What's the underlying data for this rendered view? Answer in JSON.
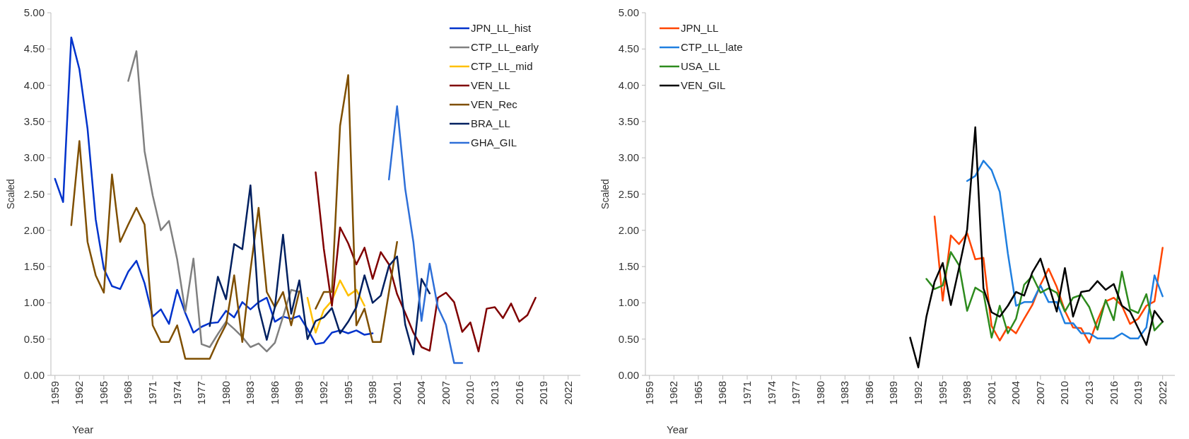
{
  "chart_data": [
    {
      "type": "line",
      "xlabel": "Year",
      "ylabel": "Scaled",
      "xlim": [
        1958.5,
        2023.5
      ],
      "ylim": [
        0,
        5
      ],
      "xticks": [
        1959,
        1962,
        1965,
        1968,
        1971,
        1974,
        1977,
        1980,
        1983,
        1986,
        1989,
        1992,
        1995,
        1998,
        2001,
        2004,
        2007,
        2010,
        2013,
        2016,
        2019,
        2022
      ],
      "yticks": [
        {
          "value": 0,
          "label": "0.00"
        },
        {
          "value": 0.5,
          "label": "0.50"
        },
        {
          "value": 1,
          "label": "1.00"
        },
        {
          "value": 1.5,
          "label": "1.50"
        },
        {
          "value": 2,
          "label": "2.00"
        },
        {
          "value": 2.5,
          "label": "2.50"
        },
        {
          "value": 3,
          "label": "3.00"
        },
        {
          "value": 3.5,
          "label": "3.50"
        },
        {
          "value": 4,
          "label": "4.00"
        },
        {
          "value": 4.5,
          "label": "4.50"
        },
        {
          "value": 5,
          "label": "5.00"
        }
      ],
      "grid": false,
      "legend": "top right",
      "marker": "none",
      "line_style": "solid",
      "series": [
        {
          "name": "JPN_LL_hist",
          "color": "#0033cc",
          "x": [
            1959,
            1960,
            1961,
            1962,
            1963,
            1964,
            1965,
            1966,
            1967,
            1968,
            1969,
            1970,
            1971,
            1972,
            1973,
            1974,
            1975,
            1976,
            1977,
            1978,
            1979,
            1980,
            1981,
            1982,
            1983,
            1984,
            1985,
            1986,
            1987,
            1988,
            1989,
            1990,
            1991,
            1992,
            1993,
            1994,
            1995,
            1996,
            1997,
            1998
          ],
          "values": [
            2.71,
            2.39,
            4.66,
            4.22,
            3.4,
            2.15,
            1.47,
            1.23,
            1.19,
            1.43,
            1.58,
            1.27,
            0.81,
            0.91,
            0.71,
            1.18,
            0.86,
            0.59,
            0.67,
            0.72,
            0.73,
            0.89,
            0.8,
            1.01,
            0.91,
            1.01,
            1.07,
            0.74,
            0.81,
            0.78,
            0.82,
            0.64,
            0.43,
            0.45,
            0.59,
            0.62,
            0.58,
            0.62,
            0.56,
            0.58
          ]
        },
        {
          "name": "CTP_LL_early",
          "color": "#808080",
          "x": [
            1968,
            1969,
            1970,
            1971,
            1972,
            1973,
            1974,
            1975,
            1976,
            1977,
            1978,
            1979,
            1980,
            1981,
            1982,
            1983,
            1984,
            1985,
            1986,
            1987,
            1988,
            1989
          ],
          "values": [
            4.06,
            4.47,
            3.09,
            2.48,
            2.0,
            2.13,
            1.6,
            0.88,
            1.61,
            0.43,
            0.39,
            0.57,
            0.74,
            0.64,
            0.53,
            0.39,
            0.44,
            0.33,
            0.45,
            0.81,
            1.18,
            1.15
          ]
        },
        {
          "name": "CTP_LL_mid",
          "color": "#ffc000",
          "x": [
            1990,
            1991,
            1992,
            1993,
            1994,
            1995,
            1996,
            1997
          ],
          "values": [
            1.07,
            0.59,
            0.9,
            1.03,
            1.31,
            1.1,
            1.18,
            0.96
          ]
        },
        {
          "name": "VEN_LL",
          "color": "#800000",
          "x": [
            1991,
            1992,
            1993,
            1994,
            1995,
            1996,
            1997,
            1998,
            1999,
            2000,
            2001,
            2002,
            2003,
            2004,
            2005,
            2006,
            2007,
            2008,
            2009,
            2010,
            2011,
            2012,
            2013,
            2014,
            2015,
            2016,
            2017,
            2018
          ],
          "values": [
            2.8,
            1.75,
            0.96,
            2.04,
            1.82,
            1.53,
            1.76,
            1.33,
            1.7,
            1.53,
            1.12,
            0.86,
            0.59,
            0.39,
            0.34,
            1.07,
            1.14,
            1.01,
            0.6,
            0.73,
            0.33,
            0.92,
            0.94,
            0.79,
            0.99,
            0.74,
            0.83,
            1.07
          ]
        },
        {
          "name": "VEN_Rec",
          "color": "#7f4f00",
          "x": [
            1961,
            1962,
            1963,
            1964,
            1965,
            1966,
            1967,
            1968,
            1969,
            1970,
            1971,
            1972,
            1973,
            1974,
            1975,
            1976,
            1977,
            1978,
            1979,
            1980,
            1981,
            1982,
            1983,
            1984,
            1985,
            1986,
            1987,
            1988,
            1989,
            1990,
            1991,
            1992,
            1993,
            1994,
            1995,
            1996,
            1997,
            1998,
            1999,
            2000,
            2001
          ],
          "values": [
            2.07,
            3.23,
            1.84,
            1.38,
            1.14,
            2.77,
            1.84,
            2.08,
            2.31,
            2.08,
            0.69,
            0.46,
            0.46,
            0.69,
            0.23,
            0.23,
            0.23,
            0.23,
            0.48,
            0.7,
            1.38,
            0.46,
            1.45,
            2.31,
            1.15,
            0.94,
            1.15,
            0.69,
            1.16,
            null,
            0.92,
            1.15,
            1.15,
            3.44,
            4.14,
            0.69,
            0.92,
            0.46,
            0.46,
            1.15,
            1.84
          ]
        },
        {
          "name": "BRA_LL",
          "color": "#002060",
          "x": [
            1978,
            1979,
            1980,
            1981,
            1982,
            1983,
            1984,
            1985,
            1986,
            1987,
            1988,
            1989,
            1990,
            1991,
            1992,
            1993,
            1994,
            1995,
            1996,
            1997,
            1998,
            1999,
            2000,
            2001,
            2002,
            2003,
            2004,
            2005
          ],
          "values": [
            0.68,
            1.36,
            1.05,
            1.81,
            1.74,
            2.62,
            0.94,
            0.49,
            0.94,
            1.94,
            0.85,
            1.31,
            0.5,
            0.75,
            0.8,
            0.93,
            0.58,
            0.74,
            0.94,
            1.38,
            1.0,
            1.1,
            1.51,
            1.64,
            0.7,
            0.29,
            1.33,
            1.13
          ]
        },
        {
          "name": "GHA_GIL",
          "color": "#2e6fd8",
          "x": [
            2000,
            2001,
            2002,
            2003,
            2004,
            2005,
            2006,
            2007,
            2008,
            2009
          ],
          "values": [
            2.7,
            3.71,
            2.57,
            1.84,
            0.75,
            1.54,
            0.94,
            0.7,
            0.17,
            0.17
          ]
        }
      ]
    },
    {
      "type": "line",
      "xlabel": "Year",
      "ylabel": "Scaled",
      "xlim": [
        1958.5,
        2023.5
      ],
      "ylim": [
        0,
        5
      ],
      "xticks": [
        1959,
        1962,
        1965,
        1968,
        1971,
        1974,
        1977,
        1980,
        1983,
        1986,
        1989,
        1992,
        1995,
        1998,
        2001,
        2004,
        2007,
        2010,
        2013,
        2016,
        2019,
        2022
      ],
      "yticks": [
        {
          "value": 0,
          "label": "0.00"
        },
        {
          "value": 0.5,
          "label": "0.50"
        },
        {
          "value": 1,
          "label": "1.00"
        },
        {
          "value": 1.5,
          "label": "1.50"
        },
        {
          "value": 2,
          "label": "2.00"
        },
        {
          "value": 2.5,
          "label": "2.50"
        },
        {
          "value": 3,
          "label": "3.00"
        },
        {
          "value": 3.5,
          "label": "3.50"
        },
        {
          "value": 4,
          "label": "4.00"
        },
        {
          "value": 4.5,
          "label": "4.50"
        },
        {
          "value": 5,
          "label": "5.00"
        }
      ],
      "grid": false,
      "legend": "top left",
      "marker": "none",
      "line_style": "solid",
      "series": [
        {
          "name": "JPN_LL",
          "color": "#ff4500",
          "x": [
            1994,
            1995,
            1996,
            1997,
            1998,
            1999,
            2000,
            2001,
            2002,
            2003,
            2004,
            2005,
            2006,
            2007,
            2008,
            2009,
            2010,
            2011,
            2012,
            2013,
            2014,
            2015,
            2016,
            2017,
            2018,
            2019,
            2020,
            2021,
            2022
          ],
          "values": [
            2.19,
            1.03,
            1.93,
            1.81,
            1.96,
            1.6,
            1.62,
            0.68,
            0.48,
            0.67,
            0.58,
            0.78,
            0.97,
            1.25,
            1.47,
            1.22,
            0.89,
            0.66,
            0.65,
            0.45,
            0.76,
            1.02,
            1.07,
            0.96,
            0.71,
            0.78,
            0.96,
            1.02,
            1.76
          ]
        },
        {
          "name": "CTP_LL_late",
          "color": "#1f7fe0",
          "x": [
            1998,
            1999,
            2000,
            2001,
            2002,
            2003,
            2004,
            2005,
            2006,
            2007,
            2008,
            2009,
            2010,
            2011,
            2012,
            2013,
            2014,
            2015,
            2016,
            2017,
            2018,
            2019,
            2020,
            2021,
            2022
          ],
          "values": [
            2.68,
            2.75,
            2.96,
            2.83,
            2.53,
            1.68,
            0.96,
            1.01,
            1.01,
            1.24,
            1.01,
            1.01,
            0.72,
            0.72,
            0.58,
            0.58,
            0.51,
            0.51,
            0.51,
            0.58,
            0.51,
            0.51,
            0.66,
            1.38,
            1.09
          ]
        },
        {
          "name": "USA_LL",
          "color": "#2e8b1e",
          "x": [
            1993,
            1994,
            1995,
            1996,
            1997,
            1998,
            1999,
            2000,
            2001,
            2002,
            2003,
            2004,
            2005,
            2006,
            2007,
            2008,
            2009,
            2010,
            2011,
            2012,
            2013,
            2014,
            2015,
            2016,
            2017,
            2018,
            2019,
            2020,
            2021,
            2022
          ],
          "values": [
            1.33,
            1.19,
            1.24,
            1.7,
            1.52,
            0.89,
            1.21,
            1.14,
            0.52,
            0.96,
            0.58,
            0.78,
            1.25,
            1.37,
            1.14,
            1.2,
            1.14,
            0.88,
            1.07,
            1.11,
            0.94,
            0.63,
            1.04,
            0.76,
            1.43,
            0.91,
            0.86,
            1.12,
            0.62,
            0.74
          ]
        },
        {
          "name": "VEN_GIL",
          "color": "#000000",
          "x": [
            1991,
            1992,
            1993,
            1994,
            1995,
            1996,
            1997,
            1998,
            1999,
            2000,
            2001,
            2002,
            2003,
            2004,
            2005,
            2006,
            2007,
            2008,
            2009,
            2010,
            2011,
            2012,
            2013,
            2014,
            2015,
            2016,
            2017,
            2018,
            2019,
            2020,
            2021,
            2022
          ],
          "values": [
            0.52,
            0.11,
            0.81,
            1.29,
            1.55,
            0.97,
            1.48,
            2.01,
            3.42,
            1.2,
            0.87,
            0.81,
            0.96,
            1.15,
            1.1,
            1.42,
            1.61,
            1.25,
            0.88,
            1.48,
            0.81,
            1.15,
            1.17,
            1.3,
            1.18,
            1.26,
            0.96,
            0.88,
            0.65,
            0.42,
            0.89,
            0.74
          ]
        }
      ]
    }
  ]
}
